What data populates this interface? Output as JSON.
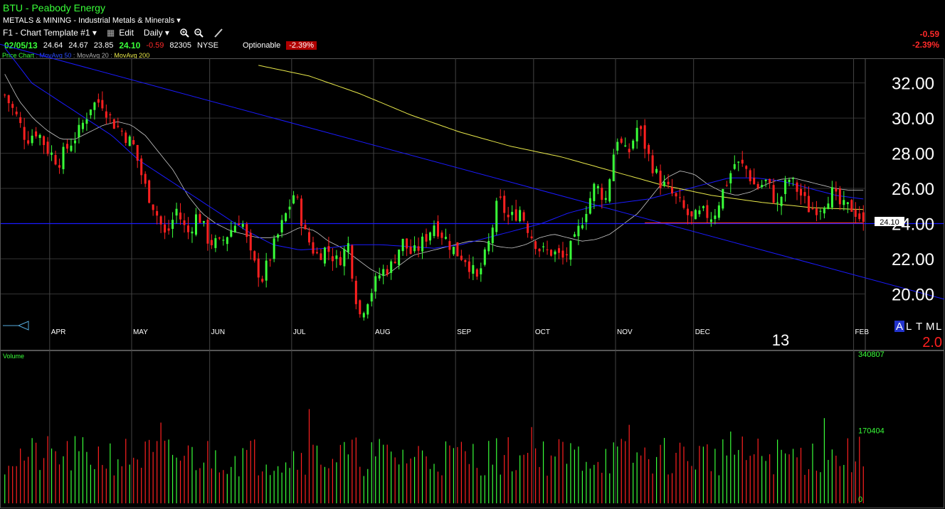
{
  "header": {
    "title": "BTU - Peabody Energy",
    "industry": "METALS & MINING - Industrial Metals & Minerals",
    "template": "F1 - Chart Template #1",
    "edit_label": "Edit",
    "period_label": "Daily",
    "icons": [
      "zoom-in-icon",
      "zoom-out-icon",
      "pen-icon"
    ]
  },
  "quote": {
    "date": "02/05/13",
    "open": "24.64",
    "high": "24.67",
    "low": "23.85",
    "last": "24.10",
    "change": "-0.59",
    "volume": "82305",
    "exchange": "NYSE",
    "optionable_label": "Optionable",
    "pct_change": "-2.39%"
  },
  "right_change": {
    "change": "-0.59",
    "pct": "-2.39%"
  },
  "legend": {
    "price": "Price Chart",
    "ma50": "MovAvg 50",
    "ma20": "MovAvg 20",
    "ma200": "MovAvg 200"
  },
  "colors": {
    "up": "#39ff39",
    "down": "#ff2020",
    "ma50": "#1a1aff",
    "ma20": "#c8c8c8",
    "ma200": "#e8e84a",
    "trend": "#1a1aff"
  },
  "misc": {
    "year_label": "13",
    "corner_letters": [
      "A",
      "L",
      "T",
      "M",
      "L"
    ],
    "corner_value": "2.0",
    "last_price_tag": "24.10"
  },
  "chart_data": {
    "type": "candlestick",
    "yticks": [
      20,
      22,
      24,
      26,
      28,
      30,
      32
    ],
    "ylim": [
      18.2,
      33.4
    ],
    "month_labels": [
      "APR",
      "MAY",
      "JUN",
      "JUL",
      "AUG",
      "SEP",
      "OCT",
      "NOV",
      "DEC",
      "FEB"
    ],
    "month_bar_index": [
      12,
      33,
      53,
      74,
      95,
      116,
      136,
      157,
      177,
      218
    ],
    "close_path": [
      31.3,
      30.2,
      28.8,
      29.3,
      28.2,
      27.5,
      28.5,
      29.3,
      30.7,
      31.0,
      29.8,
      29.2,
      28.4,
      26.2,
      24.8,
      23.2,
      24.8,
      23.4,
      24.6,
      23.0,
      22.8,
      23.6,
      24.4,
      21.9,
      20.9,
      22.6,
      24.2,
      25.8,
      23.4,
      22.2,
      22.6,
      21.8,
      22.8,
      18.7,
      20.0,
      21.2,
      21.6,
      23.0,
      22.2,
      23.0,
      24.0,
      23.2,
      22.4,
      22.0,
      20.8,
      22.6,
      25.4,
      24.2,
      24.8,
      23.4,
      22.4,
      22.4,
      22.0,
      22.8,
      24.6,
      26.2,
      25.4,
      29.0,
      27.8,
      29.6,
      27.8,
      26.4,
      25.8,
      25.0,
      24.2,
      24.6,
      24.4,
      26.0,
      27.4,
      27.2,
      26.0,
      26.4,
      25.0,
      26.6,
      25.8,
      24.8,
      25.0,
      25.8,
      24.9,
      24.9,
      24.1
    ],
    "ma20_path": [
      32.5,
      31.0,
      30.0,
      29.3,
      28.8,
      28.8,
      29.2,
      29.6,
      29.8,
      29.6,
      29.0,
      28.0,
      27.0,
      25.6,
      24.6,
      24.0,
      23.6,
      23.4,
      23.2,
      23.2,
      23.4,
      23.8,
      23.6,
      23.0,
      22.6,
      22.0,
      21.4,
      21.0,
      21.6,
      22.2,
      22.4,
      22.6,
      22.8,
      23.0,
      23.0,
      22.7,
      22.6,
      22.8,
      23.2,
      23.4,
      23.2,
      23.0,
      23.1,
      23.4,
      24.0,
      24.6,
      25.6,
      26.6,
      27.0,
      26.8,
      26.2,
      25.8,
      25.6,
      25.8,
      26.2,
      26.5,
      26.6,
      26.4,
      26.2,
      26.0,
      25.9,
      25.9
    ],
    "ma50_path": [
      34.0,
      32.0,
      31.0,
      30.0,
      29.0,
      27.6,
      26.6,
      25.6,
      24.6,
      23.6,
      22.8,
      22.5,
      22.6,
      22.8,
      22.8,
      22.7,
      22.6,
      22.8,
      23.2,
      23.6,
      24.0,
      24.6,
      25.0,
      25.2,
      25.4,
      25.8,
      26.2,
      26.6,
      26.6,
      26.4,
      26.0,
      25.6,
      25.4
    ],
    "ma200_path": [
      33.0,
      32.4,
      31.4,
      30.2,
      29.2,
      28.4,
      27.8,
      27.0,
      26.2,
      25.6,
      25.2,
      24.9,
      24.8
    ],
    "trendline": {
      "from": [
        0,
        34.2
      ],
      "to": [
        1327,
        19.7
      ]
    },
    "support_level": 24.0,
    "volume_axis": {
      "max_label": "340807",
      "mid_label": "170404",
      "min_label": "0",
      "max_value": 340807
    }
  }
}
